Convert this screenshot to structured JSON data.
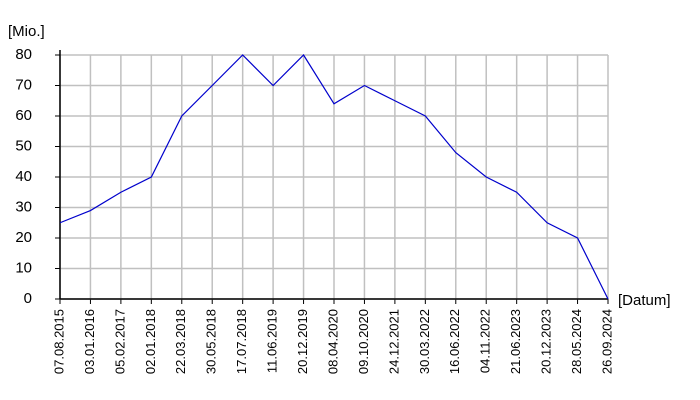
{
  "chart_data": {
    "type": "line",
    "y_label": "[Mio.]",
    "x_label": "[Datum]",
    "categories": [
      "07.08.2015",
      "03.01.2016",
      "05.02.2017",
      "02.01.2018",
      "22.03.2018",
      "30.05.2018",
      "17.07.2018",
      "11.06.2019",
      "20.12.2019",
      "08.04.2020",
      "09.10.2020",
      "24.12.2021",
      "30.03.2022",
      "16.06.2022",
      "04.11.2022",
      "21.06.2023",
      "20.12.2023",
      "28.05.2024",
      "26.09.2024"
    ],
    "values": [
      25,
      29,
      35,
      40,
      60,
      70,
      80,
      70,
      80,
      64,
      70,
      65,
      60,
      48,
      40,
      35,
      25,
      20,
      0
    ],
    "color": "#0000cc",
    "ylim": [
      0,
      80
    ],
    "yticks": [
      0,
      10,
      20,
      30,
      40,
      50,
      60,
      70,
      80
    ],
    "grid": true
  }
}
